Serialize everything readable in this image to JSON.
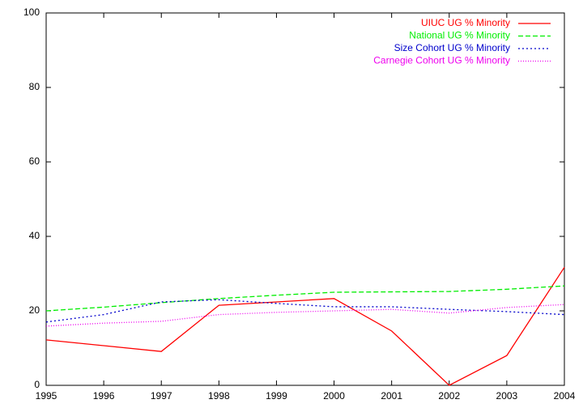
{
  "chart_data": {
    "type": "line",
    "series": [
      {
        "name": "UIUC UG % Minority",
        "color": "#ff0000",
        "style": "solid",
        "x": [
          1995,
          1997,
          1998,
          2000,
          2001,
          2002,
          2003,
          2004
        ],
        "values": [
          12.2,
          9.1,
          21.5,
          23.3,
          14.6,
          0,
          8.0,
          31.7
        ]
      },
      {
        "name": "National UG % Minority",
        "color": "#00ee00",
        "style": "dashed",
        "x": [
          1995,
          1996,
          1997,
          1998,
          1999,
          2000,
          2001,
          2002,
          2003,
          2004
        ],
        "values": [
          20,
          21,
          22.2,
          23.3,
          24.2,
          25,
          25.1,
          25.2,
          25.8,
          26.7
        ]
      },
      {
        "name": "Size Cohort UG % Minority",
        "color": "#0000cc",
        "style": "dotted",
        "x": [
          1995,
          1996,
          1997,
          1998,
          1999,
          2000,
          2001,
          2002,
          2003,
          2004
        ],
        "values": [
          17,
          19,
          22.4,
          23,
          22,
          21.1,
          21.1,
          20.4,
          19.8,
          19
        ]
      },
      {
        "name": "Carnegie Cohort UG % Minority",
        "color": "#ee00ee",
        "style": "fine-dotted",
        "x": [
          1995,
          1996,
          1997,
          1998,
          1999,
          2000,
          2001,
          2002,
          2003,
          2004
        ],
        "values": [
          15.9,
          16.7,
          17.2,
          19,
          19.6,
          20,
          20.4,
          19.4,
          20.9,
          21.7
        ]
      }
    ],
    "xlim": [
      1995,
      2004
    ],
    "xticks": [
      1995,
      1996,
      1997,
      1998,
      1999,
      2000,
      2001,
      2002,
      2003,
      2004
    ],
    "ylim": [
      0,
      100
    ],
    "yticks": [
      0,
      20,
      40,
      60,
      80,
      100
    ],
    "legend": "top-right"
  }
}
